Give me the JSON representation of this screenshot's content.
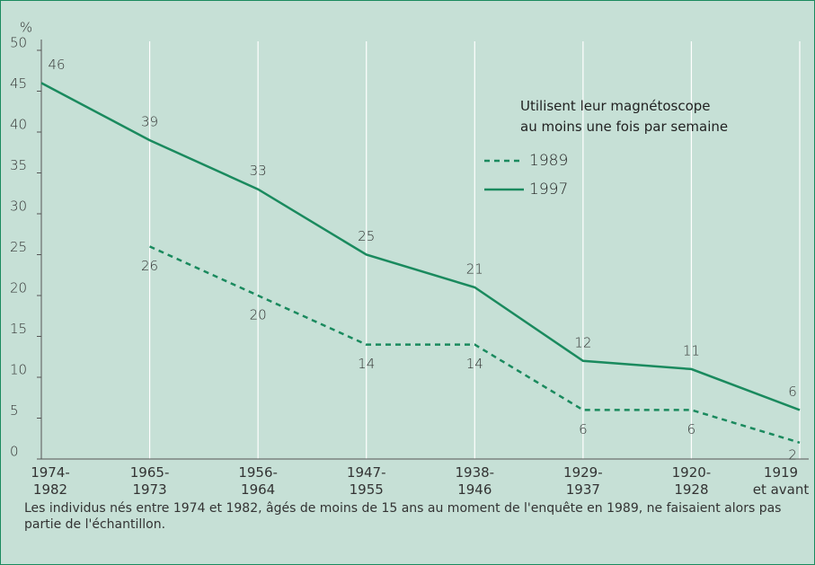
{
  "chart_data": {
    "type": "line",
    "y_label": "%",
    "legend_title": "Utilisent leur magnétoscope\nau moins une fois par semaine",
    "categories": [
      "1974-\n1982",
      "1965-\n1973",
      "1956-\n1964",
      "1947-\n1955",
      "1938-\n1946",
      "1929-\n1937",
      "1920-\n1928",
      "1919\net avant"
    ],
    "series": [
      {
        "name": "1989",
        "color": "#1a8a5e",
        "dashed": true,
        "values": [
          null,
          26,
          20,
          14,
          14,
          6,
          6,
          2
        ]
      },
      {
        "name": "1997",
        "color": "#1a8a5e",
        "dashed": false,
        "values": [
          46,
          39,
          33,
          25,
          21,
          12,
          11,
          6
        ]
      }
    ],
    "ylim": [
      0,
      50
    ],
    "yticks": [
      0,
      5,
      10,
      15,
      20,
      25,
      30,
      35,
      40,
      45,
      50
    ],
    "grid": true,
    "note": "Les individus nés entre 1974 et 1982, âgés de moins de 15 ans au moment de l'enquête en 1989, ne faisaient alors pas partie de l'échantillon."
  }
}
